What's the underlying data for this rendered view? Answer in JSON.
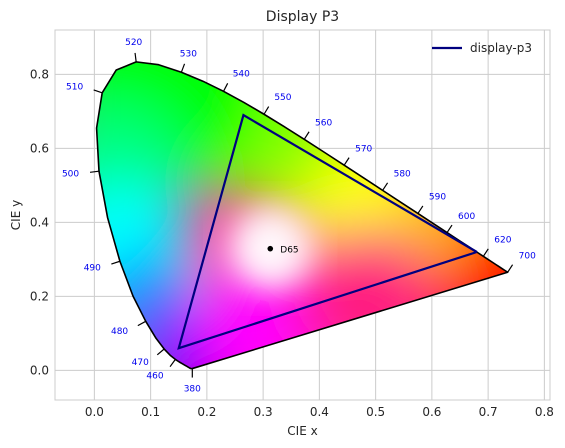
{
  "chart_data": {
    "type": "line",
    "title": "Display P3",
    "xlabel": "CIE x",
    "ylabel": "CIE y",
    "xlim": [
      -0.07,
      0.81
    ],
    "ylim": [
      -0.08,
      0.92
    ],
    "xticks": [
      "0.0",
      "0.1",
      "0.2",
      "0.3",
      "0.4",
      "0.5",
      "0.6",
      "0.7",
      "0.8"
    ],
    "yticks": [
      "0.0",
      "0.2",
      "0.4",
      "0.6",
      "0.8"
    ],
    "grid": true,
    "legend_position": "top-right",
    "spectral_locus": [
      [
        0.1741,
        0.005
      ],
      [
        0.174,
        0.005
      ],
      [
        0.1738,
        0.0049
      ],
      [
        0.1736,
        0.0049
      ],
      [
        0.1733,
        0.0048
      ],
      [
        0.173,
        0.0048
      ],
      [
        0.1726,
        0.0048
      ],
      [
        0.1721,
        0.0048
      ],
      [
        0.1714,
        0.0051
      ],
      [
        0.1703,
        0.0058
      ],
      [
        0.1689,
        0.0069
      ],
      [
        0.1669,
        0.0086
      ],
      [
        0.1644,
        0.0109
      ],
      [
        0.1611,
        0.0138
      ],
      [
        0.1566,
        0.0177
      ],
      [
        0.151,
        0.0227
      ],
      [
        0.144,
        0.0297
      ],
      [
        0.1355,
        0.0399
      ],
      [
        0.1241,
        0.0578
      ],
      [
        0.1096,
        0.0868
      ],
      [
        0.0913,
        0.1327
      ],
      [
        0.0687,
        0.2007
      ],
      [
        0.0454,
        0.295
      ],
      [
        0.0235,
        0.4127
      ],
      [
        0.0082,
        0.5384
      ],
      [
        0.0039,
        0.6548
      ],
      [
        0.0139,
        0.7502
      ],
      [
        0.0389,
        0.812
      ],
      [
        0.0743,
        0.8338
      ],
      [
        0.1142,
        0.8262
      ],
      [
        0.1547,
        0.8059
      ],
      [
        0.1929,
        0.7816
      ],
      [
        0.2296,
        0.7543
      ],
      [
        0.2658,
        0.7243
      ],
      [
        0.3016,
        0.6923
      ],
      [
        0.3373,
        0.6589
      ],
      [
        0.3731,
        0.6245
      ],
      [
        0.4087,
        0.5896
      ],
      [
        0.4441,
        0.5547
      ],
      [
        0.4788,
        0.5202
      ],
      [
        0.5125,
        0.4866
      ],
      [
        0.5448,
        0.4544
      ],
      [
        0.5752,
        0.4242
      ],
      [
        0.6029,
        0.3965
      ],
      [
        0.627,
        0.3725
      ],
      [
        0.6482,
        0.3514
      ],
      [
        0.6658,
        0.334
      ],
      [
        0.6801,
        0.3197
      ],
      [
        0.6915,
        0.3083
      ],
      [
        0.7006,
        0.2993
      ],
      [
        0.7079,
        0.292
      ],
      [
        0.714,
        0.2859
      ],
      [
        0.719,
        0.2809
      ],
      [
        0.723,
        0.277
      ],
      [
        0.726,
        0.274
      ],
      [
        0.7283,
        0.2717
      ],
      [
        0.73,
        0.27
      ],
      [
        0.7311,
        0.2689
      ],
      [
        0.732,
        0.268
      ],
      [
        0.7327,
        0.2673
      ],
      [
        0.7334,
        0.2666
      ],
      [
        0.734,
        0.266
      ],
      [
        0.7344,
        0.2656
      ],
      [
        0.7346,
        0.2654
      ],
      [
        0.7347,
        0.2653
      ]
    ],
    "wavelength_labels": [
      {
        "label": "380",
        "x": 0.1741,
        "y": 0.005
      },
      {
        "label": "460",
        "x": 0.144,
        "y": 0.0297
      },
      {
        "label": "470",
        "x": 0.1241,
        "y": 0.0578
      },
      {
        "label": "480",
        "x": 0.0913,
        "y": 0.1327
      },
      {
        "label": "490",
        "x": 0.0454,
        "y": 0.295
      },
      {
        "label": "500",
        "x": 0.0082,
        "y": 0.5384
      },
      {
        "label": "510",
        "x": 0.0139,
        "y": 0.7502
      },
      {
        "label": "520",
        "x": 0.0743,
        "y": 0.8338
      },
      {
        "label": "530",
        "x": 0.1547,
        "y": 0.8059
      },
      {
        "label": "540",
        "x": 0.2296,
        "y": 0.7543
      },
      {
        "label": "550",
        "x": 0.3016,
        "y": 0.6923
      },
      {
        "label": "560",
        "x": 0.3731,
        "y": 0.6245
      },
      {
        "label": "570",
        "x": 0.4441,
        "y": 0.5547
      },
      {
        "label": "580",
        "x": 0.5125,
        "y": 0.4866
      },
      {
        "label": "590",
        "x": 0.5752,
        "y": 0.4242
      },
      {
        "label": "600",
        "x": 0.627,
        "y": 0.3725
      },
      {
        "label": "620",
        "x": 0.6915,
        "y": 0.3083
      },
      {
        "label": "700",
        "x": 0.7347,
        "y": 0.2653
      }
    ],
    "series": [
      {
        "name": "display-p3",
        "color": "#00007f",
        "points": [
          [
            0.68,
            0.32
          ],
          [
            0.265,
            0.69
          ],
          [
            0.15,
            0.06
          ],
          [
            0.68,
            0.32
          ]
        ]
      }
    ],
    "points": [
      {
        "label": "D65",
        "x": 0.3127,
        "y": 0.329
      }
    ]
  }
}
